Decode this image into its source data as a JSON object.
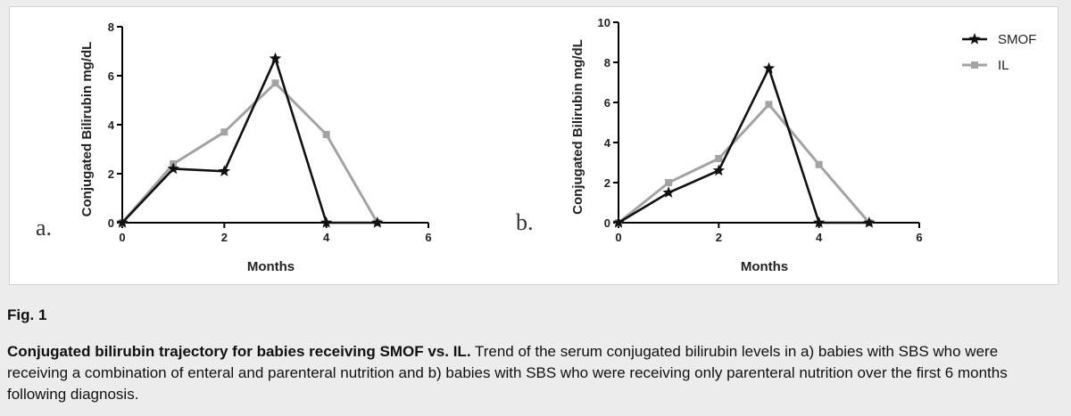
{
  "figure": {
    "label": "Fig. 1",
    "caption_title": "Conjugated bilirubin trajectory for babies receiving SMOF vs. IL.",
    "caption_body": "Trend of the serum conjugated bilirubin levels in a) babies with SBS who were receiving a combination of enteral and parenteral nutrition and b) babies with SBS who were receiving only parenteral nutrition over the first 6 months following diagnosis."
  },
  "colors": {
    "smof": "#111111",
    "il": "#a3a3a3"
  },
  "legend": {
    "placement": "top-right",
    "entries": [
      "SMOF",
      "IL"
    ]
  },
  "chart_data": [
    {
      "type": "line",
      "panel": "a.",
      "xlabel": "Months",
      "ylabel": "Conjugated Bilirubin mg/dL",
      "xlim": [
        0,
        6
      ],
      "ylim": [
        0,
        8
      ],
      "xticks": [
        0,
        2,
        4,
        6
      ],
      "yticks": [
        0,
        2,
        4,
        6,
        8
      ],
      "series": [
        {
          "name": "SMOF",
          "marker": "star",
          "x": [
            0,
            1,
            2,
            3,
            4,
            5
          ],
          "y": [
            0,
            2.2,
            2.1,
            6.7,
            0,
            0
          ]
        },
        {
          "name": "IL",
          "marker": "square",
          "x": [
            0,
            1,
            2,
            3,
            4,
            5
          ],
          "y": [
            0,
            2.4,
            3.7,
            5.7,
            3.6,
            0
          ]
        }
      ]
    },
    {
      "type": "line",
      "panel": "b.",
      "xlabel": "Months",
      "ylabel": "Conjugated Bilirubin mg/dL",
      "xlim": [
        0,
        6
      ],
      "ylim": [
        0,
        10
      ],
      "xticks": [
        0,
        2,
        4,
        6
      ],
      "yticks": [
        0,
        2,
        4,
        6,
        8,
        10
      ],
      "series": [
        {
          "name": "SMOF",
          "marker": "star",
          "x": [
            0,
            1,
            2,
            3,
            4,
            5
          ],
          "y": [
            0,
            1.5,
            2.6,
            7.7,
            0,
            0
          ]
        },
        {
          "name": "IL",
          "marker": "square",
          "x": [
            0,
            1,
            2,
            3,
            4,
            5
          ],
          "y": [
            0,
            2.0,
            3.2,
            5.9,
            2.9,
            0
          ]
        }
      ]
    }
  ]
}
